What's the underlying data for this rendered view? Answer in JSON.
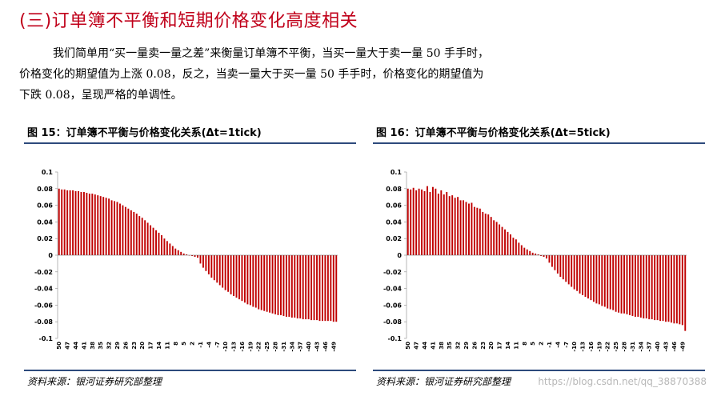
{
  "heading": "(三)订单簿不平衡和短期价格变化高度相关",
  "paragraph": {
    "line1": "我们简单用“买一量卖一量之差”来衡量订单簿不平衡，当买一量大于卖一量 50 手手时，",
    "line2": "价格变化的期望值为上涨 0.08，反之，当卖一量大于买一量 50 手手时，价格变化的期望值为",
    "line3": "下跌 0.08，呈现严格的单调性。"
  },
  "figures": {
    "left": {
      "title": "图 15：订单簿不平衡与价格变化关系(Δt=1tick)",
      "source": "资料来源：银河证券研究部整理"
    },
    "right": {
      "title": "图 16：订单簿不平衡与价格变化关系(Δt=5tick)",
      "source": "资料来源：银河证券研究部整理"
    }
  },
  "watermark": "https://blog.csdn.net/qq_38870388",
  "colors": {
    "heading": "#c0001a",
    "bar": "#c00000",
    "rule": "#2d4a7c"
  },
  "chart_data": [
    {
      "type": "bar",
      "title": "订单簿不平衡与价格变化关系(Δt=1tick)",
      "xlabel": "",
      "ylabel": "",
      "ylim": [
        -0.1,
        0.1
      ],
      "yticks": [
        0.1,
        0.08,
        0.06,
        0.04,
        0.02,
        0,
        -0.02,
        -0.04,
        -0.06,
        -0.08,
        -0.1
      ],
      "categories": [
        50,
        49,
        48,
        47,
        46,
        45,
        44,
        43,
        42,
        41,
        40,
        39,
        38,
        37,
        36,
        35,
        34,
        33,
        32,
        31,
        30,
        29,
        28,
        27,
        26,
        25,
        24,
        23,
        22,
        21,
        20,
        19,
        18,
        17,
        16,
        15,
        14,
        13,
        12,
        11,
        10,
        9,
        8,
        7,
        6,
        5,
        4,
        3,
        2,
        1,
        0,
        -1,
        -2,
        -3,
        -4,
        -5,
        -6,
        -7,
        -8,
        -9,
        -10,
        -11,
        -12,
        -13,
        -14,
        -15,
        -16,
        -17,
        -18,
        -19,
        -20,
        -21,
        -22,
        -23,
        -24,
        -25,
        -26,
        -27,
        -28,
        -29,
        -30,
        -31,
        -32,
        -33,
        -34,
        -35,
        -36,
        -37,
        -38,
        -39,
        -40,
        -41,
        -42,
        -43,
        -44,
        -45,
        -46,
        -47,
        -48,
        -49,
        -50
      ],
      "tick_labels": [
        "50",
        "47",
        "44",
        "41",
        "38",
        "35",
        "32",
        "29",
        "26",
        "23",
        "20",
        "17",
        "14",
        "11",
        "8",
        "5",
        "2",
        "-1",
        "-4",
        "-7",
        "-10",
        "-13",
        "-16",
        "-19",
        "-22",
        "-25",
        "-28",
        "-31",
        "-34",
        "-37",
        "-40",
        "-43",
        "-46",
        "-49"
      ],
      "values": [
        0.08,
        0.079,
        0.079,
        0.078,
        0.078,
        0.078,
        0.077,
        0.077,
        0.076,
        0.076,
        0.075,
        0.074,
        0.074,
        0.073,
        0.072,
        0.071,
        0.07,
        0.069,
        0.068,
        0.066,
        0.065,
        0.064,
        0.062,
        0.06,
        0.058,
        0.056,
        0.054,
        0.052,
        0.05,
        0.047,
        0.045,
        0.042,
        0.039,
        0.036,
        0.033,
        0.03,
        0.027,
        0.024,
        0.02,
        0.017,
        0.014,
        0.011,
        0.008,
        0.006,
        0.004,
        0.002,
        0.001,
        0,
        -0.001,
        -0.002,
        -0.003,
        -0.01,
        -0.015,
        -0.019,
        -0.023,
        -0.027,
        -0.03,
        -0.033,
        -0.036,
        -0.039,
        -0.042,
        -0.044,
        -0.047,
        -0.049,
        -0.051,
        -0.053,
        -0.055,
        -0.057,
        -0.059,
        -0.06,
        -0.062,
        -0.063,
        -0.065,
        -0.066,
        -0.067,
        -0.068,
        -0.069,
        -0.07,
        -0.071,
        -0.072,
        -0.072,
        -0.073,
        -0.074,
        -0.074,
        -0.075,
        -0.075,
        -0.076,
        -0.076,
        -0.077,
        -0.077,
        -0.077,
        -0.078,
        -0.078,
        -0.078,
        -0.079,
        -0.079,
        -0.079,
        -0.079,
        -0.079,
        -0.08,
        -0.08
      ]
    },
    {
      "type": "bar",
      "title": "订单簿不平衡与价格变化关系(Δt=5tick)",
      "xlabel": "",
      "ylabel": "",
      "ylim": [
        -0.1,
        0.1
      ],
      "yticks": [
        0.1,
        0.08,
        0.06,
        0.04,
        0.02,
        0,
        -0.02,
        -0.04,
        -0.06,
        -0.08,
        -0.1
      ],
      "categories": [
        50,
        49,
        48,
        47,
        46,
        45,
        44,
        43,
        42,
        41,
        40,
        39,
        38,
        37,
        36,
        35,
        34,
        33,
        32,
        31,
        30,
        29,
        28,
        27,
        26,
        25,
        24,
        23,
        22,
        21,
        20,
        19,
        18,
        17,
        16,
        15,
        14,
        13,
        12,
        11,
        10,
        9,
        8,
        7,
        6,
        5,
        4,
        3,
        2,
        1,
        0,
        -1,
        -2,
        -3,
        -4,
        -5,
        -6,
        -7,
        -8,
        -9,
        -10,
        -11,
        -12,
        -13,
        -14,
        -15,
        -16,
        -17,
        -18,
        -19,
        -20,
        -21,
        -22,
        -23,
        -24,
        -25,
        -26,
        -27,
        -28,
        -29,
        -30,
        -31,
        -32,
        -33,
        -34,
        -35,
        -36,
        -37,
        -38,
        -39,
        -40,
        -41,
        -42,
        -43,
        -44,
        -45,
        -46,
        -47,
        -48,
        -49,
        -50
      ],
      "tick_labels": [
        "50",
        "47",
        "44",
        "41",
        "38",
        "35",
        "32",
        "29",
        "26",
        "23",
        "20",
        "17",
        "14",
        "11",
        "8",
        "5",
        "2",
        "-1",
        "-4",
        "-7",
        "-10",
        "-13",
        "-16",
        "-19",
        "-22",
        "-25",
        "-28",
        "-31",
        "-34",
        "-37",
        "-40",
        "-43",
        "-46",
        "-49"
      ],
      "values": [
        0.08,
        0.079,
        0.081,
        0.078,
        0.08,
        0.079,
        0.077,
        0.083,
        0.076,
        0.082,
        0.08,
        0.074,
        0.078,
        0.073,
        0.076,
        0.071,
        0.072,
        0.069,
        0.07,
        0.066,
        0.066,
        0.064,
        0.062,
        0.063,
        0.058,
        0.057,
        0.056,
        0.052,
        0.05,
        0.049,
        0.046,
        0.042,
        0.04,
        0.037,
        0.034,
        0.031,
        0.028,
        0.025,
        0.021,
        0.019,
        0.015,
        0.012,
        0.009,
        0.007,
        0.005,
        0.003,
        0.002,
        0.001,
        -0.001,
        -0.002,
        -0.004,
        -0.009,
        -0.014,
        -0.018,
        -0.022,
        -0.026,
        -0.029,
        -0.032,
        -0.035,
        -0.038,
        -0.041,
        -0.043,
        -0.046,
        -0.048,
        -0.05,
        -0.052,
        -0.054,
        -0.056,
        -0.058,
        -0.059,
        -0.061,
        -0.062,
        -0.064,
        -0.065,
        -0.066,
        -0.068,
        -0.069,
        -0.07,
        -0.07,
        -0.071,
        -0.072,
        -0.073,
        -0.074,
        -0.074,
        -0.075,
        -0.076,
        -0.076,
        -0.077,
        -0.077,
        -0.078,
        -0.078,
        -0.079,
        -0.079,
        -0.08,
        -0.08,
        -0.081,
        -0.082,
        -0.082,
        -0.083,
        -0.084,
        -0.091
      ]
    }
  ]
}
